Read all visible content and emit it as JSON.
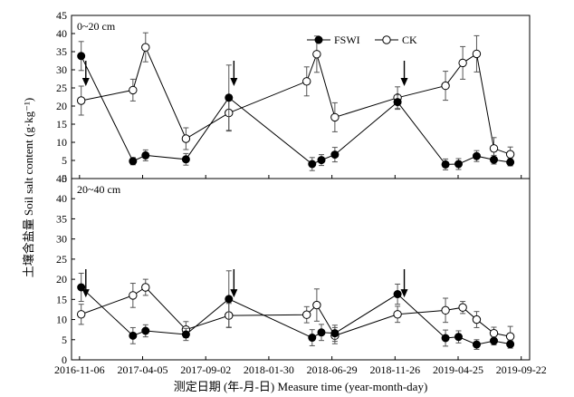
{
  "chart_data": {
    "type": "line",
    "y_axis_title": "土壤含盐量 Soil salt content (g·kg⁻¹)",
    "x_axis_title": "测定日期 (年-月-日) Measure time (year-month-day)",
    "x_tick_labels": [
      "2016-11-06",
      "2017-04-05",
      "2017-09-02",
      "2018-01-30",
      "2018-06-29",
      "2018-11-26",
      "2019-04-25",
      "2019-09-22"
    ],
    "x_ticks": [
      "2016-11-06",
      "2017-04-05",
      "2017-09-02",
      "2018-01-30",
      "2018-06-29",
      "2018-11-26",
      "2019-04-25",
      "2019-09-22"
    ],
    "xlim": [
      "2016-10-18",
      "2019-10-12"
    ],
    "legend": {
      "placement": "top-right",
      "entries": [
        "FSWI",
        "CK"
      ]
    },
    "panels": [
      {
        "label": "0~20 cm",
        "ylim": [
          0,
          45
        ],
        "yticks": [
          0,
          5,
          10,
          15,
          20,
          25,
          30,
          35,
          40,
          45
        ],
        "arrows": [
          "2016-11-21",
          "2017-11-08",
          "2018-12-18"
        ],
        "series": [
          {
            "name": "FSWI",
            "marker": "filled-circle",
            "points": [
              {
                "x": "2016-11-10",
                "y": 33.8,
                "err": 4.0
              },
              {
                "x": "2017-03-13",
                "y": 4.8,
                "err": 1.0
              },
              {
                "x": "2017-04-12",
                "y": 6.4,
                "err": 1.5
              },
              {
                "x": "2017-07-17",
                "y": 5.3,
                "err": 1.6
              },
              {
                "x": "2017-10-27",
                "y": 22.3,
                "err": 9.0
              },
              {
                "x": "2018-05-13",
                "y": 4.0,
                "err": 1.8
              },
              {
                "x": "2018-06-04",
                "y": 5.1,
                "err": 1.5
              },
              {
                "x": "2018-07-06",
                "y": 6.6,
                "err": 2.0
              },
              {
                "x": "2018-12-02",
                "y": 21.1,
                "err": 2.0
              },
              {
                "x": "2019-03-26",
                "y": 3.9,
                "err": 1.5
              },
              {
                "x": "2019-04-26",
                "y": 4.0,
                "err": 1.5
              },
              {
                "x": "2019-06-08",
                "y": 6.2,
                "err": 1.5
              },
              {
                "x": "2019-07-19",
                "y": 5.2,
                "err": 1.2
              },
              {
                "x": "2019-08-27",
                "y": 4.5,
                "err": 1.0
              }
            ]
          },
          {
            "name": "CK",
            "marker": "open-circle",
            "points": [
              {
                "x": "2016-11-10",
                "y": 21.5,
                "err": 4.0
              },
              {
                "x": "2017-03-13",
                "y": 24.4,
                "err": 3.0
              },
              {
                "x": "2017-04-12",
                "y": 36.2,
                "err": 4.0
              },
              {
                "x": "2017-07-17",
                "y": 11.0,
                "err": 3.0
              },
              {
                "x": "2017-10-27",
                "y": 18.1,
                "err": 5.0
              },
              {
                "x": "2018-04-30",
                "y": 26.8,
                "err": 4.0
              },
              {
                "x": "2018-05-24",
                "y": 34.3,
                "err": 5.0
              },
              {
                "x": "2018-07-06",
                "y": 16.9,
                "err": 4.0
              },
              {
                "x": "2018-12-02",
                "y": 22.3,
                "err": 3.0
              },
              {
                "x": "2019-03-26",
                "y": 25.6,
                "err": 4.0
              },
              {
                "x": "2019-05-06",
                "y": 31.9,
                "err": 4.5
              },
              {
                "x": "2019-06-08",
                "y": 34.4,
                "err": 5.0
              },
              {
                "x": "2019-07-19",
                "y": 8.3,
                "err": 3.0
              },
              {
                "x": "2019-08-27",
                "y": 6.7,
                "err": 2.0
              }
            ]
          }
        ]
      },
      {
        "label": "20~40 cm",
        "ylim": [
          0,
          45
        ],
        "yticks": [
          0,
          5,
          10,
          15,
          20,
          25,
          30,
          35,
          40,
          45
        ],
        "arrows": [
          "2016-11-21",
          "2017-11-08",
          "2018-12-18"
        ],
        "series": [
          {
            "name": "FSWI",
            "marker": "filled-circle",
            "points": [
              {
                "x": "2016-11-10",
                "y": 18.0,
                "err": 3.5
              },
              {
                "x": "2017-03-13",
                "y": 6.0,
                "err": 2.0
              },
              {
                "x": "2017-04-12",
                "y": 7.2,
                "err": 1.5
              },
              {
                "x": "2017-07-17",
                "y": 6.3,
                "err": 1.5
              },
              {
                "x": "2017-10-27",
                "y": 15.1,
                "err": 7.0
              },
              {
                "x": "2018-05-13",
                "y": 5.5,
                "err": 2.0
              },
              {
                "x": "2018-06-04",
                "y": 6.8,
                "err": 2.0
              },
              {
                "x": "2018-07-06",
                "y": 6.6,
                "err": 2.0
              },
              {
                "x": "2018-12-02",
                "y": 16.3,
                "err": 2.5
              },
              {
                "x": "2019-03-26",
                "y": 5.4,
                "err": 2.0
              },
              {
                "x": "2019-04-26",
                "y": 5.7,
                "err": 1.5
              },
              {
                "x": "2019-06-08",
                "y": 3.8,
                "err": 1.2
              },
              {
                "x": "2019-07-19",
                "y": 4.7,
                "err": 1.0
              },
              {
                "x": "2019-08-27",
                "y": 3.9,
                "err": 1.0
              }
            ]
          },
          {
            "name": "CK",
            "marker": "open-circle",
            "points": [
              {
                "x": "2016-11-10",
                "y": 11.3,
                "err": 2.5
              },
              {
                "x": "2017-03-13",
                "y": 16.0,
                "err": 3.0
              },
              {
                "x": "2017-04-12",
                "y": 18.0,
                "err": 2.0
              },
              {
                "x": "2017-07-17",
                "y": 7.5,
                "err": 2.0
              },
              {
                "x": "2017-10-27",
                "y": 11.0,
                "err": 3.0
              },
              {
                "x": "2018-04-30",
                "y": 11.2,
                "err": 2.0
              },
              {
                "x": "2018-05-24",
                "y": 13.6,
                "err": 4.0
              },
              {
                "x": "2018-07-06",
                "y": 6.0,
                "err": 2.0
              },
              {
                "x": "2018-12-02",
                "y": 11.3,
                "err": 2.0
              },
              {
                "x": "2019-03-26",
                "y": 12.3,
                "err": 3.0
              },
              {
                "x": "2019-05-06",
                "y": 13.0,
                "err": 1.5
              },
              {
                "x": "2019-06-08",
                "y": 10.0,
                "err": 2.0
              },
              {
                "x": "2019-07-19",
                "y": 6.6,
                "err": 1.5
              },
              {
                "x": "2019-08-27",
                "y": 5.8,
                "err": 2.5
              }
            ]
          }
        ]
      }
    ]
  }
}
